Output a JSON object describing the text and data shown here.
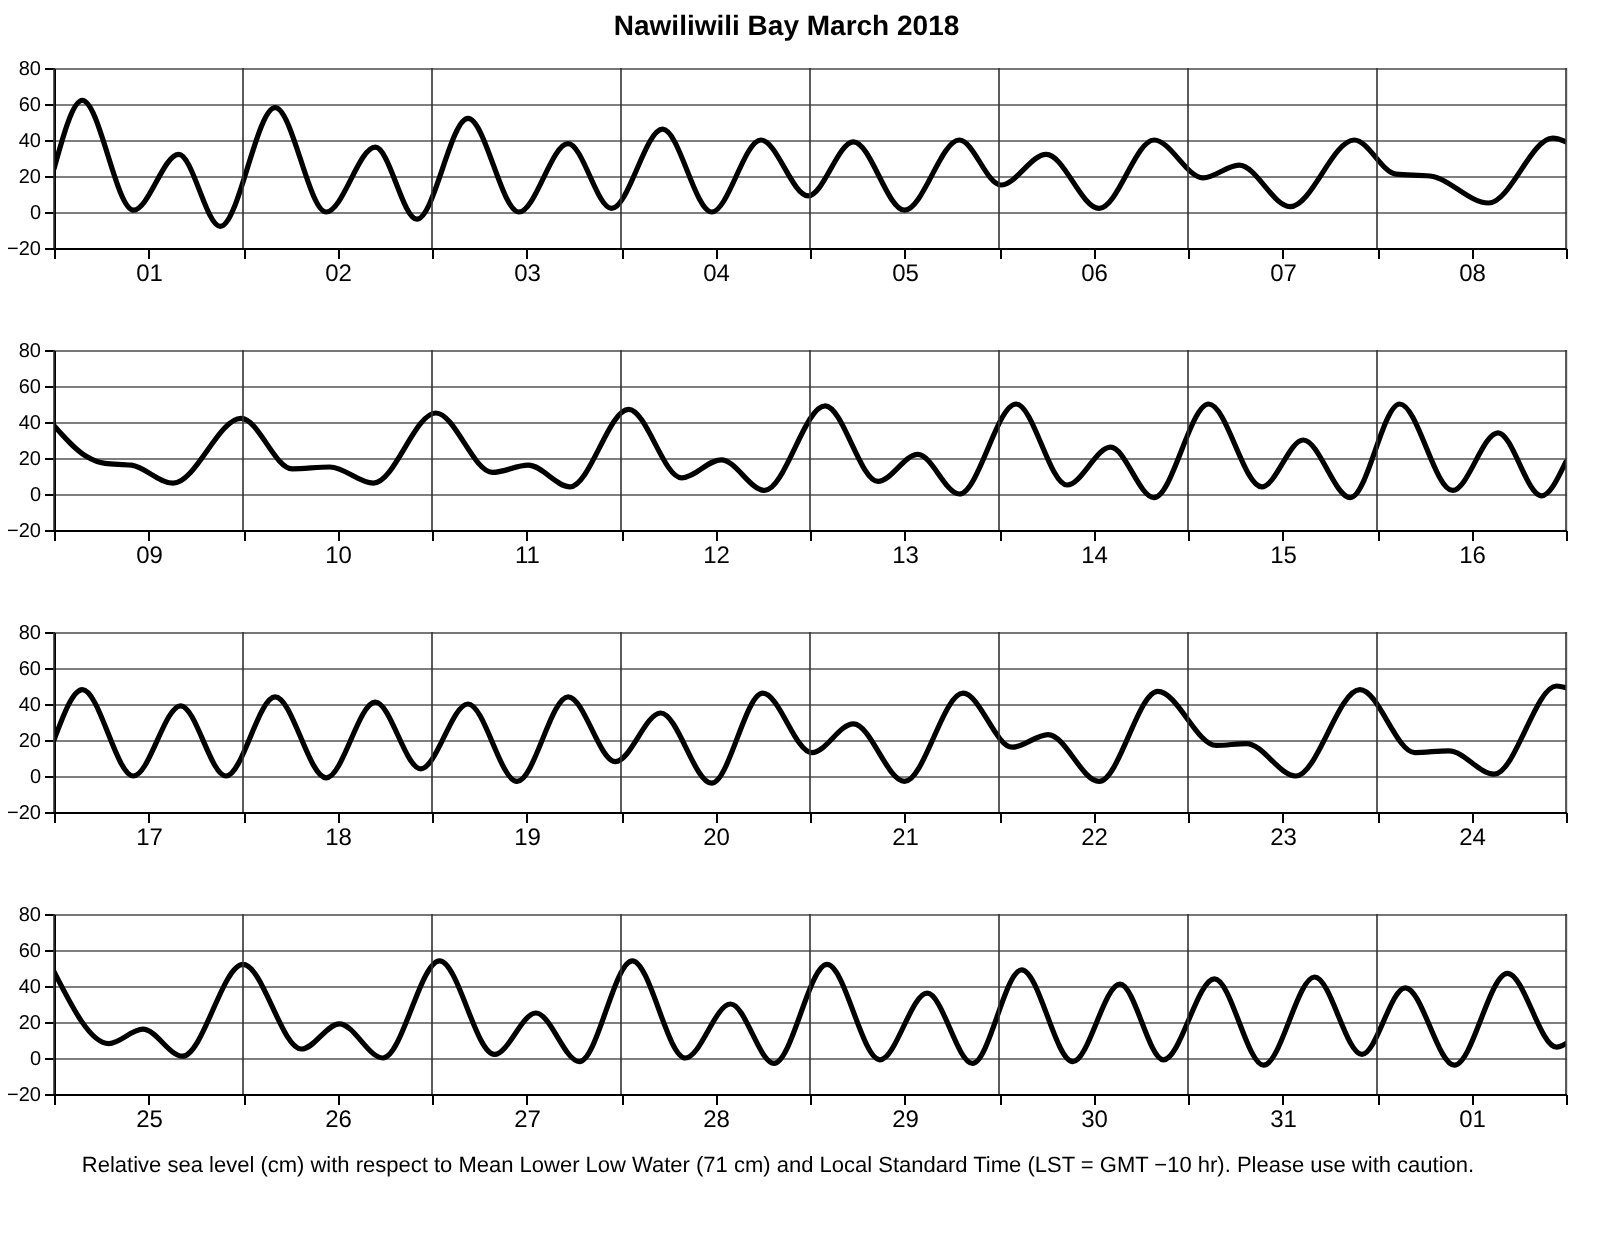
{
  "chart_data": [
    {
      "type": "line",
      "title": "Nawiliwili Bay March 2018",
      "xlim": [
        "2018-03-01T00:00",
        "2018-03-09T00:00"
      ],
      "ylim": [
        -20,
        80
      ],
      "yticks": [
        -20,
        0,
        20,
        40,
        60,
        80
      ],
      "grid": true,
      "xticks": [
        {
          "value": "2018-03-01T00:00",
          "label": null
        },
        {
          "value": "2018-03-01T12:00",
          "label": "01"
        },
        {
          "value": "2018-03-02T00:00",
          "label": null
        },
        {
          "value": "2018-03-02T12:00",
          "label": "02"
        },
        {
          "value": "2018-03-03T00:00",
          "label": null
        },
        {
          "value": "2018-03-03T12:00",
          "label": "03"
        },
        {
          "value": "2018-03-04T00:00",
          "label": null
        },
        {
          "value": "2018-03-04T12:00",
          "label": "04"
        },
        {
          "value": "2018-03-05T00:00",
          "label": null
        },
        {
          "value": "2018-03-05T12:00",
          "label": "05"
        },
        {
          "value": "2018-03-06T00:00",
          "label": null
        },
        {
          "value": "2018-03-06T12:00",
          "label": "06"
        },
        {
          "value": "2018-03-07T00:00",
          "label": null
        },
        {
          "value": "2018-03-07T12:00",
          "label": "07"
        },
        {
          "value": "2018-03-08T00:00",
          "label": null
        },
        {
          "value": "2018-03-08T12:00",
          "label": "08"
        },
        {
          "value": "2018-03-09T00:00",
          "label": null
        }
      ],
      "x": [
        "2018-03-01T00:00",
        "2018-03-01T03:36",
        "2018-03-01T10:05",
        "2018-03-01T15:50",
        "2018-03-01T21:07",
        "2018-03-02T04:05",
        "2018-03-02T10:34",
        "2018-03-02T16:48",
        "2018-03-02T22:05",
        "2018-03-03T04:34",
        "2018-03-03T11:02",
        "2018-03-03T17:17",
        "2018-03-03T22:48",
        "2018-03-04T05:17",
        "2018-03-04T11:31",
        "2018-03-04T17:46",
        "2018-03-04T23:46",
        "2018-03-05T05:31",
        "2018-03-05T12:00",
        "2018-03-05T18:58",
        "2018-03-06T00:14",
        "2018-03-06T06:00",
        "2018-03-06T12:43",
        "2018-03-06T19:41",
        "2018-03-07T01:55",
        "2018-03-07T06:29",
        "2018-03-07T12:58",
        "2018-03-07T21:07",
        "2018-03-08T02:24",
        "2018-03-08T06:43",
        "2018-03-08T14:10",
        "2018-03-08T22:19",
        "2018-03-09T00:00"
      ],
      "series": [
        {
          "color": "#000000",
          "values": [
            24,
            62,
            1,
            32,
            -8,
            58,
            0,
            36,
            -4,
            52,
            0,
            38,
            2,
            46,
            0,
            40,
            9,
            39,
            1,
            40,
            15,
            32,
            2,
            40,
            19,
            26,
            3,
            40,
            21,
            20,
            5,
            41,
            39
          ]
        }
      ]
    },
    {
      "type": "line",
      "xlim": [
        "2018-03-09T00:00",
        "2018-03-17T00:00"
      ],
      "ylim": [
        -20,
        80
      ],
      "yticks": [
        -20,
        0,
        20,
        40,
        60,
        80
      ],
      "grid": true,
      "xticks": [
        {
          "value": "2018-03-09T00:00",
          "label": null
        },
        {
          "value": "2018-03-09T12:00",
          "label": "09"
        },
        {
          "value": "2018-03-10T00:00",
          "label": null
        },
        {
          "value": "2018-03-10T12:00",
          "label": "10"
        },
        {
          "value": "2018-03-11T00:00",
          "label": null
        },
        {
          "value": "2018-03-11T12:00",
          "label": "11"
        },
        {
          "value": "2018-03-12T00:00",
          "label": null
        },
        {
          "value": "2018-03-12T12:00",
          "label": "12"
        },
        {
          "value": "2018-03-13T00:00",
          "label": null
        },
        {
          "value": "2018-03-13T12:00",
          "label": "13"
        },
        {
          "value": "2018-03-14T00:00",
          "label": null
        },
        {
          "value": "2018-03-14T12:00",
          "label": "14"
        },
        {
          "value": "2018-03-15T00:00",
          "label": null
        },
        {
          "value": "2018-03-15T12:00",
          "label": "15"
        },
        {
          "value": "2018-03-16T00:00",
          "label": null
        },
        {
          "value": "2018-03-16T12:00",
          "label": "16"
        },
        {
          "value": "2018-03-17T00:00",
          "label": null
        }
      ],
      "x": [
        "2018-03-09T00:00",
        "2018-03-09T04:05",
        "2018-03-09T06:29",
        "2018-03-09T09:50",
        "2018-03-09T15:07",
        "2018-03-09T23:46",
        "2018-03-10T06:14",
        "2018-03-10T11:02",
        "2018-03-10T16:34",
        "2018-03-11T00:29",
        "2018-03-11T07:41",
        "2018-03-11T12:14",
        "2018-03-11T17:31",
        "2018-03-12T00:58",
        "2018-03-12T07:41",
        "2018-03-12T12:43",
        "2018-03-12T18:14",
        "2018-03-13T01:55",
        "2018-03-13T08:38",
        "2018-03-13T13:41",
        "2018-03-13T18:58",
        "2018-03-14T02:10",
        "2018-03-14T08:38",
        "2018-03-14T14:10",
        "2018-03-14T19:41",
        "2018-03-15T02:38",
        "2018-03-15T09:22",
        "2018-03-15T14:38",
        "2018-03-15T20:38",
        "2018-03-16T02:53",
        "2018-03-16T09:36",
        "2018-03-16T15:22",
        "2018-03-16T20:53",
        "2018-03-17T00:00"
      ],
      "series": [
        {
          "color": "#000000",
          "values": [
            38,
            21,
            17,
            16,
            6,
            42,
            14,
            15,
            6,
            45,
            12,
            16,
            4,
            47,
            9,
            19,
            2,
            49,
            7,
            22,
            0,
            50,
            5,
            26,
            -2,
            50,
            4,
            30,
            -2,
            50,
            2,
            34,
            -1,
            18
          ]
        }
      ]
    },
    {
      "type": "line",
      "xlim": [
        "2018-03-17T00:00",
        "2018-03-25T00:00"
      ],
      "ylim": [
        -20,
        80
      ],
      "yticks": [
        -20,
        0,
        20,
        40,
        60,
        80
      ],
      "grid": true,
      "xticks": [
        {
          "value": "2018-03-17T00:00",
          "label": null
        },
        {
          "value": "2018-03-17T12:00",
          "label": "17"
        },
        {
          "value": "2018-03-18T00:00",
          "label": null
        },
        {
          "value": "2018-03-18T12:00",
          "label": "18"
        },
        {
          "value": "2018-03-19T00:00",
          "label": null
        },
        {
          "value": "2018-03-19T12:00",
          "label": "19"
        },
        {
          "value": "2018-03-20T00:00",
          "label": null
        },
        {
          "value": "2018-03-20T12:00",
          "label": "20"
        },
        {
          "value": "2018-03-21T00:00",
          "label": null
        },
        {
          "value": "2018-03-21T12:00",
          "label": "21"
        },
        {
          "value": "2018-03-22T00:00",
          "label": null
        },
        {
          "value": "2018-03-22T12:00",
          "label": "22"
        },
        {
          "value": "2018-03-23T00:00",
          "label": null
        },
        {
          "value": "2018-03-23T12:00",
          "label": "23"
        },
        {
          "value": "2018-03-24T00:00",
          "label": null
        },
        {
          "value": "2018-03-24T12:00",
          "label": "24"
        },
        {
          "value": "2018-03-25T00:00",
          "label": null
        }
      ],
      "x": [
        "2018-03-17T00:00",
        "2018-03-17T03:36",
        "2018-03-17T10:05",
        "2018-03-17T16:05",
        "2018-03-17T21:50",
        "2018-03-18T04:05",
        "2018-03-18T10:34",
        "2018-03-18T16:48",
        "2018-03-18T22:34",
        "2018-03-19T04:34",
        "2018-03-19T10:48",
        "2018-03-19T17:17",
        "2018-03-19T23:17",
        "2018-03-20T05:02",
        "2018-03-20T11:31",
        "2018-03-20T18:00",
        "2018-03-21T00:14",
        "2018-03-21T05:31",
        "2018-03-21T12:00",
        "2018-03-21T19:26",
        "2018-03-22T01:41",
        "2018-03-22T06:14",
        "2018-03-22T12:43",
        "2018-03-22T20:10",
        "2018-03-23T03:36",
        "2018-03-23T07:26",
        "2018-03-23T13:41",
        "2018-03-23T21:50",
        "2018-03-24T04:48",
        "2018-03-24T09:07",
        "2018-03-24T14:53",
        "2018-03-24T22:48",
        "2018-03-25T00:00"
      ],
      "series": [
        {
          "color": "#000000",
          "values": [
            20,
            48,
            0,
            39,
            0,
            44,
            -1,
            41,
            4,
            40,
            -3,
            44,
            8,
            35,
            -4,
            46,
            13,
            29,
            -3,
            46,
            16,
            23,
            -3,
            47,
            17,
            18,
            0,
            48,
            13,
            14,
            1,
            50,
            49
          ]
        }
      ]
    },
    {
      "type": "line",
      "xlim": [
        "2018-03-25T00:00",
        "2018-04-02T00:00"
      ],
      "ylim": [
        -20,
        80
      ],
      "yticks": [
        -20,
        0,
        20,
        40,
        60,
        80
      ],
      "grid": true,
      "annotations": [
        "Relative sea level (cm) with respect to Mean Lower Low Water (71 cm) and Local Standard Time (LST = GMT −10 hr). Please use with caution."
      ],
      "xticks": [
        {
          "value": "2018-03-25T00:00",
          "label": null
        },
        {
          "value": "2018-03-25T12:00",
          "label": "25"
        },
        {
          "value": "2018-03-26T00:00",
          "label": null
        },
        {
          "value": "2018-03-26T12:00",
          "label": "26"
        },
        {
          "value": "2018-03-27T00:00",
          "label": null
        },
        {
          "value": "2018-03-27T12:00",
          "label": "27"
        },
        {
          "value": "2018-03-28T00:00",
          "label": null
        },
        {
          "value": "2018-03-28T12:00",
          "label": "28"
        },
        {
          "value": "2018-03-29T00:00",
          "label": null
        },
        {
          "value": "2018-03-29T12:00",
          "label": "29"
        },
        {
          "value": "2018-03-30T00:00",
          "label": null
        },
        {
          "value": "2018-03-30T12:00",
          "label": "30"
        },
        {
          "value": "2018-03-31T00:00",
          "label": null
        },
        {
          "value": "2018-03-31T12:00",
          "label": "31"
        },
        {
          "value": "2018-04-01T00:00",
          "label": null
        },
        {
          "value": "2018-04-01T12:00",
          "label": "01"
        },
        {
          "value": "2018-04-02T00:00",
          "label": null
        }
      ],
      "x": [
        "2018-03-25T00:00",
        "2018-03-25T06:58",
        "2018-03-25T11:17",
        "2018-03-25T16:19",
        "2018-03-26T00:00",
        "2018-03-26T07:26",
        "2018-03-26T12:14",
        "2018-03-26T17:46",
        "2018-03-27T00:58",
        "2018-03-27T07:55",
        "2018-03-27T13:12",
        "2018-03-27T18:43",
        "2018-03-28T01:26",
        "2018-03-28T08:10",
        "2018-03-28T13:55",
        "2018-03-28T19:26",
        "2018-03-29T02:10",
        "2018-03-29T08:53",
        "2018-03-29T14:53",
        "2018-03-29T20:38",
        "2018-03-30T02:53",
        "2018-03-30T09:22",
        "2018-03-30T15:22",
        "2018-03-30T20:53",
        "2018-03-31T03:22",
        "2018-03-31T09:36",
        "2018-03-31T16:05",
        "2018-03-31T22:05",
        "2018-04-01T03:36",
        "2018-04-01T09:50",
        "2018-04-01T16:34",
        "2018-04-01T22:48",
        "2018-04-02T00:00"
      ],
      "series": [
        {
          "color": "#000000",
          "values": [
            48,
            8,
            16,
            1,
            52,
            5,
            19,
            0,
            54,
            2,
            25,
            -2,
            54,
            0,
            30,
            -3,
            52,
            -1,
            36,
            -3,
            49,
            -2,
            41,
            -1,
            44,
            -4,
            45,
            2,
            39,
            -4,
            47,
            6,
            8
          ]
        }
      ]
    }
  ]
}
